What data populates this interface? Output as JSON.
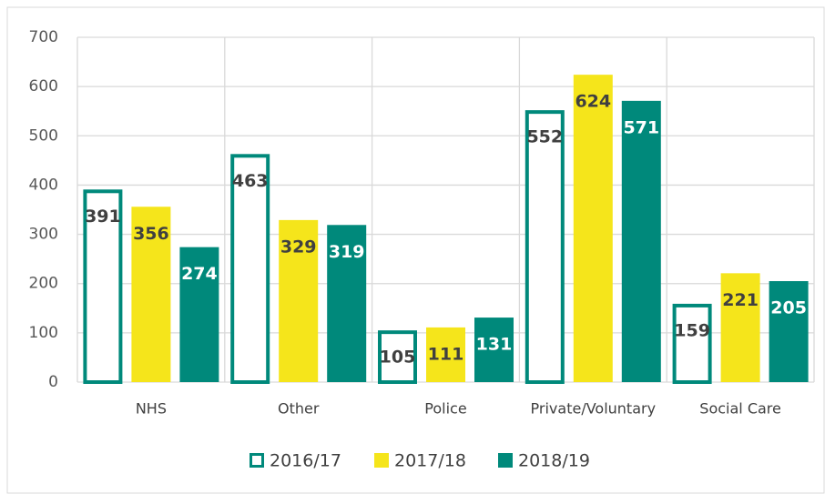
{
  "chart_data": {
    "type": "bar",
    "categories": [
      "NHS",
      "Other",
      "Police",
      "Private/Voluntary",
      "Social Care"
    ],
    "series": [
      {
        "name": "2016/17",
        "color": "#00897b",
        "fill": "#ffffff",
        "values": [
          391,
          463,
          105,
          552,
          159
        ]
      },
      {
        "name": "2017/18",
        "color": "#f5e51b",
        "values": [
          356,
          329,
          111,
          624,
          221
        ]
      },
      {
        "name": "2018/19",
        "color": "#00897b",
        "values": [
          274,
          319,
          131,
          571,
          205
        ]
      }
    ],
    "ylim": [
      0,
      700
    ],
    "yticks": [
      0,
      100,
      200,
      300,
      400,
      500,
      600,
      700
    ],
    "grid": true,
    "legend": "bottom"
  }
}
